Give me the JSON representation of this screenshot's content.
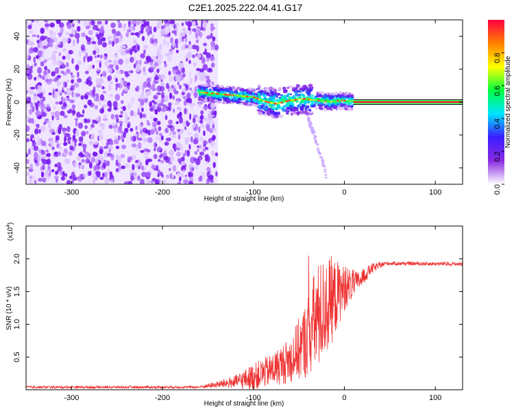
{
  "figure": {
    "title": "C2E1.2025.222.04.41.G17"
  },
  "chart_data": [
    {
      "type": "heatmap",
      "title": "C2E1.2025.222.04.41.G17",
      "xlabel": "Height of straight line (km)",
      "ylabel": "Frequency (Hz)",
      "xlim": [
        -350,
        130
      ],
      "ylim": [
        -50,
        50
      ],
      "xticks": [
        -300,
        -200,
        -100,
        0,
        100
      ],
      "yticks": [
        -40,
        -20,
        0,
        20,
        40
      ],
      "colorbar": {
        "label": "Normalized spectral amplitude",
        "range": [
          0,
          1
        ],
        "ticks": [
          0.0,
          0.2,
          0.4,
          0.6,
          0.8
        ],
        "tick_labels": [
          "0.0",
          "0.2",
          "0.4",
          "0.6",
          "0.8"
        ],
        "colormap": [
          "#ffffff",
          "#8a2be2",
          "#3b1cff",
          "#00e5ff",
          "#00ff40",
          "#ffff00",
          "#ff8000",
          "#ff0040"
        ]
      },
      "features": [
        {
          "name": "noise",
          "x_range": [
            -350,
            -148
          ],
          "y_range": [
            -50,
            50
          ],
          "amplitude": 0.12
        },
        {
          "name": "signal-track",
          "points": [
            [
              -160,
              6
            ],
            [
              -140,
              5
            ],
            [
              -120,
              4
            ],
            [
              -100,
              3
            ],
            [
              -85,
              0
            ],
            [
              -75,
              -1
            ],
            [
              -60,
              1
            ],
            [
              -45,
              2
            ],
            [
              -30,
              1
            ],
            [
              -15,
              0
            ],
            [
              -5,
              1
            ],
            [
              10,
              0.5
            ]
          ],
          "amplitude": 0.5
        },
        {
          "name": "carrier-line",
          "x_range": [
            10,
            130
          ],
          "frequency": 0,
          "amplitude": 0.95
        },
        {
          "name": "diffracted-tail",
          "points": [
            [
              -40,
              -10
            ],
            [
              -33,
              -20
            ],
            [
              -28,
              -29
            ],
            [
              -23,
              -38
            ],
            [
              -20,
              -45
            ]
          ],
          "amplitude": 0.1
        }
      ]
    },
    {
      "type": "line",
      "xlabel": "Height of straight line (km)",
      "ylabel": "SNR (10 * v/v)",
      "y_multiplier_label": "(x10",
      "y_multiplier_exp": "4",
      "y_multiplier_close": ")",
      "xlim": [
        -350,
        130
      ],
      "ylim": [
        0,
        2.5
      ],
      "xticks": [
        -300,
        -200,
        -100,
        0,
        100
      ],
      "yticks": [
        0.5,
        1.0,
        1.5,
        2.0
      ],
      "ytick_labels": [
        "0.5",
        "1.0",
        "1.5",
        "2.0"
      ],
      "series": [
        {
          "color": "#ee3333",
          "envelope": [
            {
              "x": -350,
              "y": 0.04,
              "noise": 0.02
            },
            {
              "x": -160,
              "y": 0.04,
              "noise": 0.02
            },
            {
              "x": -140,
              "y": 0.08,
              "noise": 0.05
            },
            {
              "x": -120,
              "y": 0.12,
              "noise": 0.1
            },
            {
              "x": -100,
              "y": 0.2,
              "noise": 0.2
            },
            {
              "x": -80,
              "y": 0.3,
              "noise": 0.25
            },
            {
              "x": -60,
              "y": 0.45,
              "noise": 0.35
            },
            {
              "x": -45,
              "y": 0.7,
              "noise": 0.55
            },
            {
              "x": -30,
              "y": 1.1,
              "noise": 0.85
            },
            {
              "x": -15,
              "y": 1.35,
              "noise": 0.7
            },
            {
              "x": 0,
              "y": 1.55,
              "noise": 0.35
            },
            {
              "x": 15,
              "y": 1.65,
              "noise": 0.15
            },
            {
              "x": 30,
              "y": 1.85,
              "noise": 0.08
            },
            {
              "x": 45,
              "y": 1.93,
              "noise": 0.03
            },
            {
              "x": 130,
              "y": 1.92,
              "noise": 0.03
            }
          ]
        }
      ]
    }
  ]
}
